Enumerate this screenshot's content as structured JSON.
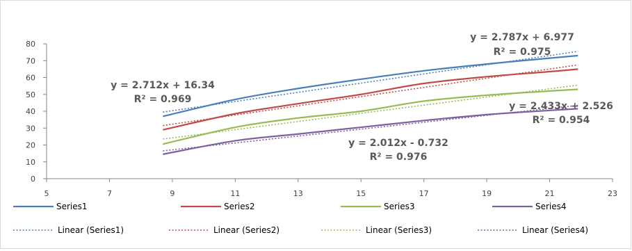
{
  "chart_data": {
    "type": "line",
    "xlim": [
      5,
      23
    ],
    "ylim": [
      0,
      80
    ],
    "x_ticks": [
      5,
      7,
      9,
      11,
      13,
      15,
      17,
      19,
      21,
      23
    ],
    "y_ticks": [
      0,
      10,
      20,
      30,
      40,
      50,
      60,
      70,
      80
    ],
    "grid": false,
    "legend_position": "bottom",
    "series": [
      {
        "name": "Series1",
        "color": "#4a7ebb",
        "x": [
          8.7,
          11,
          13,
          15,
          17,
          19,
          21,
          21.9
        ],
        "y": [
          37,
          47,
          53.5,
          59,
          64,
          68,
          71.5,
          73
        ]
      },
      {
        "name": "Series2",
        "color": "#be4b48",
        "x": [
          8.7,
          11,
          13,
          15,
          17,
          19,
          21,
          21.9
        ],
        "y": [
          29,
          38.5,
          44.5,
          50,
          56.5,
          60.5,
          63.5,
          65
        ]
      },
      {
        "name": "Series3",
        "color": "#98b954",
        "x": [
          8.7,
          11,
          13,
          15,
          17,
          19,
          21,
          21.9
        ],
        "y": [
          20.5,
          30.5,
          36,
          40,
          46,
          49.5,
          52,
          53
        ]
      },
      {
        "name": "Series4",
        "color": "#7d60a0",
        "x": [
          8.7,
          11,
          13,
          15,
          17,
          19,
          21,
          21.9
        ],
        "y": [
          14.5,
          22.5,
          26.5,
          30.5,
          34.5,
          38,
          40.5,
          41.5
        ]
      }
    ],
    "trendlines": [
      {
        "name": "Linear (Series1)",
        "color": "#4a7ebb",
        "x": [
          8.7,
          21.9
        ],
        "y": [
          39.5,
          75.5
        ]
      },
      {
        "name": "Linear (Series2)",
        "color": "#be4b48",
        "x": [
          8.7,
          21.9
        ],
        "y": [
          31.5,
          67.5
        ]
      },
      {
        "name": "Linear (Series3)",
        "color": "#98b954",
        "x": [
          8.7,
          21.9
        ],
        "y": [
          23.5,
          55.5
        ]
      },
      {
        "name": "Linear (Series4)",
        "color": "#7d60a0",
        "x": [
          8.7,
          21.9
        ],
        "y": [
          16.5,
          43.5
        ]
      }
    ],
    "annotations": [
      {
        "id": "s1-left",
        "equation": "y = 2.712x + 16.34",
        "r2": "R² = 0.969"
      },
      {
        "id": "s1-right",
        "equation": "y = 2.787x + 6.977",
        "r2": "R² = 0.975"
      },
      {
        "id": "s3-right",
        "equation": "y = 2.433x + 2.526",
        "r2": "R² = 0.954"
      },
      {
        "id": "s4-mid",
        "equation": "y = 2.012x - 0.732",
        "r2": "R² = 0.976"
      }
    ]
  }
}
